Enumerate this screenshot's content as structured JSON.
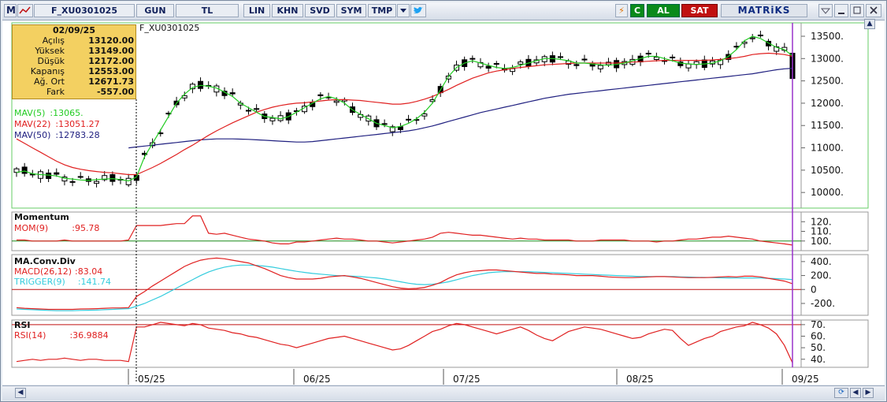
{
  "toolbar": {
    "items": [
      {
        "label": "M"
      },
      {
        "label": "F_XU0301025"
      },
      {
        "label": "GUN"
      },
      {
        "label": "TL"
      },
      {
        "label": "LIN"
      },
      {
        "label": "KHN"
      },
      {
        "label": "SVD"
      },
      {
        "label": "SYM"
      },
      {
        "label": "TMP"
      }
    ],
    "c_label": "C",
    "buy_label": "AL",
    "sell_label": "SAT",
    "brand": "MATRiKS"
  },
  "symbol_title": "F_XU0301025",
  "info": {
    "date": "02/09/25",
    "rows": [
      {
        "label": "Açılış",
        "value": "13120.00"
      },
      {
        "label": "Yüksek",
        "value": "13149.00"
      },
      {
        "label": "Düşük",
        "value": "12172.00"
      },
      {
        "label": "Kapanış",
        "value": "12553.00"
      },
      {
        "label": "Ağ. Ort",
        "value": "12671.73"
      },
      {
        "label": "Fark",
        "value": "-557.00"
      }
    ]
  },
  "colors": {
    "mav5": "#22cc22",
    "mav22": "#e02020",
    "mav50": "#202080",
    "rsi": "#e02020",
    "trigger": "#33ccdd",
    "cursor": "#9933cc"
  },
  "chart_data": [
    {
      "type": "candlestick",
      "title": "",
      "series": [
        {
          "name": "MAV(5)",
          "value_label": ":13065.",
          "values": [
            10450,
            10480,
            10420,
            10400,
            10390,
            10370,
            10320,
            10300,
            10280,
            10270,
            10290,
            10300,
            10310,
            10290,
            10260,
            10350,
            10800,
            11100,
            11400,
            11700,
            12000,
            12200,
            12350,
            12400,
            12380,
            12340,
            12250,
            12150,
            12000,
            11900,
            11800,
            11700,
            11680,
            11650,
            11700,
            11800,
            11900,
            12000,
            12100,
            12150,
            12100,
            12000,
            11850,
            11750,
            11650,
            11550,
            11500,
            11450,
            11480,
            11550,
            11650,
            11800,
            12000,
            12300,
            12600,
            12800,
            12900,
            12950,
            12900,
            12850,
            12800,
            12780,
            12800,
            12850,
            12900,
            12950,
            13000,
            13000,
            12980,
            12950,
            12900,
            12900,
            12880,
            12860,
            12850,
            12870,
            12900,
            12950,
            13000,
            13050,
            13050,
            13000,
            12950,
            12900,
            12880,
            12870,
            12880,
            12900,
            12950,
            13050,
            13200,
            13400,
            13500,
            13450,
            13350,
            13250,
            13200,
            13065
          ]
        },
        {
          "name": "MAV(22)",
          "value_label": ":13051.27",
          "values": [
            11200,
            11100,
            11000,
            10900,
            10800,
            10700,
            10620,
            10560,
            10520,
            10490,
            10470,
            10450,
            10440,
            10420,
            10400,
            10400,
            10480,
            10560,
            10650,
            10750,
            10850,
            10960,
            11060,
            11170,
            11280,
            11380,
            11470,
            11560,
            11640,
            11720,
            11800,
            11860,
            11910,
            11950,
            11980,
            12000,
            12010,
            12030,
            12050,
            12070,
            12080,
            12080,
            12070,
            12060,
            12040,
            12020,
            12000,
            11980,
            11980,
            12000,
            12040,
            12090,
            12150,
            12230,
            12310,
            12400,
            12480,
            12560,
            12620,
            12680,
            12720,
            12750,
            12780,
            12800,
            12820,
            12840,
            12860,
            12870,
            12880,
            12890,
            12900,
            12900,
            12900,
            12900,
            12900,
            12900,
            12910,
            12920,
            12930,
            12940,
            12950,
            12960,
            12960,
            12960,
            12960,
            12960,
            12960,
            12970,
            12980,
            13000,
            13020,
            13050,
            13090,
            13110,
            13120,
            13110,
            13090,
            13051
          ]
        },
        {
          "name": "MAV(50)",
          "value_label": ":12783.28",
          "values": [
            null,
            null,
            null,
            null,
            null,
            null,
            null,
            null,
            null,
            null,
            null,
            null,
            null,
            null,
            11000,
            11020,
            11040,
            11060,
            11080,
            11100,
            11120,
            11140,
            11160,
            11180,
            11190,
            11200,
            11200,
            11200,
            11195,
            11190,
            11180,
            11170,
            11160,
            11150,
            11140,
            11130,
            11130,
            11140,
            11160,
            11180,
            11200,
            11220,
            11240,
            11260,
            11280,
            11300,
            11320,
            11340,
            11360,
            11380,
            11410,
            11450,
            11490,
            11540,
            11590,
            11640,
            11690,
            11740,
            11790,
            11830,
            11870,
            11910,
            11950,
            11990,
            12030,
            12070,
            12110,
            12140,
            12170,
            12200,
            12220,
            12240,
            12260,
            12280,
            12300,
            12320,
            12340,
            12360,
            12380,
            12400,
            12420,
            12440,
            12460,
            12480,
            12500,
            12520,
            12540,
            12560,
            12580,
            12600,
            12620,
            12640,
            12660,
            12690,
            12720,
            12750,
            12770,
            12783
          ]
        }
      ],
      "y_ticks": [
        "13500.",
        "13000.",
        "12500.",
        "12000.",
        "11500.",
        "11000.",
        "10500.",
        "10000."
      ],
      "ylim": [
        9650,
        13800
      ]
    },
    {
      "type": "line",
      "title": "Momentum",
      "series": [
        {
          "name": "MOM(9)",
          "value_label": ":95.78",
          "values": [
            101,
            101,
            100,
            100,
            100,
            100,
            101,
            100,
            100,
            100,
            100,
            100,
            100,
            100,
            101,
            116,
            116,
            116,
            116,
            117,
            118,
            118,
            126,
            126,
            108,
            107,
            108,
            106,
            104,
            102,
            101,
            100,
            98,
            97,
            97,
            99,
            99,
            100,
            101,
            102,
            103,
            102,
            102,
            101,
            100,
            100,
            99,
            98,
            99,
            100,
            101,
            102,
            104,
            108,
            109,
            108,
            107,
            106,
            106,
            105,
            104,
            103,
            102,
            103,
            102,
            102,
            101,
            101,
            101,
            101,
            100,
            100,
            100,
            101,
            101,
            101,
            101,
            100,
            100,
            100,
            99,
            100,
            100,
            101,
            102,
            102,
            103,
            104,
            104,
            105,
            104,
            103,
            102,
            100,
            99,
            98,
            97,
            95.78
          ]
        }
      ],
      "y_ticks": [
        "120.",
        "110.",
        "100."
      ],
      "ylim": [
        90,
        130
      ]
    },
    {
      "type": "line",
      "title": "MA.Conv.Div",
      "series": [
        {
          "name": "MACD(26,12)",
          "value_label": ":83.04",
          "values": [
            -260,
            -270,
            -275,
            -280,
            -285,
            -285,
            -285,
            -285,
            -280,
            -278,
            -275,
            -270,
            -265,
            -265,
            -260,
            -100,
            -30,
            50,
            120,
            190,
            260,
            330,
            380,
            420,
            440,
            450,
            440,
            420,
            400,
            380,
            340,
            300,
            250,
            200,
            170,
            150,
            150,
            150,
            160,
            180,
            190,
            200,
            180,
            160,
            130,
            100,
            70,
            40,
            20,
            10,
            15,
            30,
            60,
            100,
            160,
            210,
            240,
            260,
            270,
            280,
            280,
            270,
            260,
            250,
            240,
            230,
            230,
            220,
            215,
            210,
            200,
            200,
            200,
            190,
            180,
            175,
            170,
            170,
            175,
            180,
            185,
            185,
            180,
            175,
            170,
            170,
            170,
            175,
            180,
            185,
            180,
            190,
            190,
            180,
            160,
            140,
            120,
            83.04
          ]
        },
        {
          "name": "TRIGGER(9)",
          "value_label": ":141.74",
          "values": [
            -280,
            -285,
            -290,
            -295,
            -300,
            -305,
            -305,
            -305,
            -300,
            -298,
            -295,
            -290,
            -285,
            -280,
            -275,
            -240,
            -200,
            -150,
            -100,
            -40,
            20,
            80,
            140,
            200,
            250,
            290,
            320,
            340,
            350,
            350,
            345,
            335,
            320,
            300,
            280,
            260,
            245,
            230,
            220,
            210,
            200,
            195,
            190,
            185,
            175,
            165,
            150,
            130,
            110,
            90,
            75,
            70,
            75,
            90,
            110,
            140,
            170,
            200,
            220,
            240,
            250,
            255,
            255,
            255,
            255,
            250,
            245,
            240,
            235,
            230,
            225,
            220,
            215,
            210,
            205,
            200,
            195,
            190,
            185,
            185,
            185,
            185,
            185,
            180,
            178,
            175,
            172,
            170,
            168,
            166,
            164,
            165,
            165,
            164,
            160,
            155,
            150,
            141.74
          ]
        }
      ],
      "y_ticks": [
        "400.",
        "200.",
        "0",
        "-200."
      ],
      "ylim": [
        -370,
        500
      ]
    },
    {
      "type": "line",
      "title": "RSI",
      "series": [
        {
          "name": "RSI(14)",
          "value_label": ":36.9884",
          "values": [
            38,
            39,
            40,
            39,
            40,
            40,
            41,
            40,
            39,
            40,
            40,
            39,
            39,
            39,
            38,
            68,
            68,
            70,
            72,
            71,
            70,
            69,
            71,
            70,
            67,
            66,
            65,
            63,
            62,
            60,
            59,
            57,
            55,
            53,
            52,
            50,
            52,
            54,
            56,
            58,
            59,
            60,
            58,
            56,
            54,
            52,
            50,
            48,
            49,
            52,
            56,
            60,
            64,
            66,
            69,
            71,
            70,
            68,
            66,
            64,
            62,
            64,
            66,
            68,
            65,
            61,
            58,
            56,
            60,
            64,
            66,
            68,
            67,
            66,
            64,
            62,
            60,
            58,
            59,
            62,
            64,
            66,
            65,
            58,
            52,
            55,
            58,
            60,
            64,
            66,
            68,
            69,
            72,
            70,
            67,
            62,
            52,
            36.99
          ]
        }
      ],
      "y_ticks": [
        "70.",
        "60.",
        "50.",
        "40."
      ],
      "ylim": [
        33,
        74
      ]
    }
  ],
  "x_ticks": [
    "05/25",
    "06/25",
    "07/25",
    "08/25",
    "09/25"
  ]
}
